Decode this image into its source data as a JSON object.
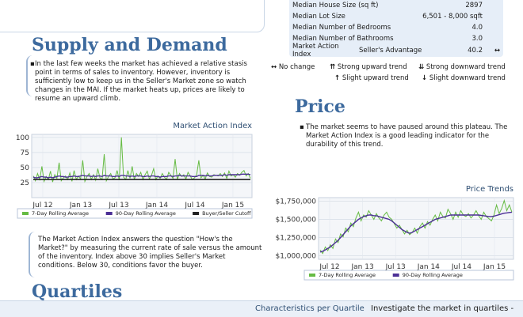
{
  "stats": {
    "rows": [
      {
        "label": "Median House Size (sq ft)",
        "value": "2897",
        "arrow": ""
      },
      {
        "label": "Median Lot Size",
        "value": "6,501 - 8,000 sqft",
        "arrow": ""
      },
      {
        "label": "Median Number of Bedrooms",
        "value": "4.0",
        "arrow": ""
      },
      {
        "label": "Median Number of Bathrooms",
        "value": "3.0",
        "arrow": ""
      }
    ],
    "mai": {
      "label": "Market Action Index",
      "sub": "Seller's Advantage",
      "value": "40.2",
      "arrow": "↔"
    }
  },
  "arrow_legend": {
    "no_change": {
      "icon": "↔",
      "text": "No change"
    },
    "strong_up": {
      "icon": "⇈",
      "text": "Strong upward trend"
    },
    "strong_down": {
      "icon": "⇊",
      "text": "Strong downward trend"
    },
    "slight_up": {
      "icon": "↑",
      "text": "Slight upward trend"
    },
    "slight_down": {
      "icon": "↓",
      "text": "Slight downward trend"
    }
  },
  "supply": {
    "title": "Supply and Demand",
    "body": "In the last few weeks the market has achieved a relative stasis point in terms of sales to inventory.  However, inventory is sufficiently low to keep us in the Seller's Market zone so watch changes in the MAI.  If the market heats up, prices are likely to resume an upward climb."
  },
  "price": {
    "title": "Price",
    "body": "The market seems to have paused around this plateau. The Market Action Index is a good leading indicator for the durability of this trend."
  },
  "mai_note": "The Market Action Index answers the question \"How's the Market?\" by measuring the current rate of sale versus the amount of the inventory.  Index above 30 implies Seller's Market conditions. Below 30, conditions favor the buyer.",
  "quartiles": {
    "title": "Quartiles",
    "characteristics": "Characteristics per Quartile",
    "investigate": "Investigate the market in quartiles -"
  },
  "chart_data": [
    {
      "type": "line",
      "title": "Market Action Index",
      "x_ticks": [
        "Jul 12",
        "Jan 13",
        "Jul 13",
        "Jan 14",
        "Jul 14",
        "Jan 15"
      ],
      "y_ticks": [
        "100",
        "75",
        "50",
        "25"
      ],
      "ylim": [
        0,
        105
      ],
      "series": [
        {
          "name": "7-Day Rolling Average",
          "color": "#66bb44",
          "values": [
            36,
            28,
            40,
            30,
            52,
            27,
            35,
            30,
            44,
            26,
            38,
            32,
            58,
            28,
            33,
            36,
            30,
            41,
            27,
            45,
            30,
            36,
            31,
            62,
            27,
            35,
            40,
            30,
            38,
            29,
            48,
            33,
            30,
            72,
            28,
            35,
            40,
            31,
            33,
            45,
            29,
            100,
            34,
            30,
            45,
            32,
            52,
            30,
            40,
            35,
            42,
            30,
            38,
            44,
            31,
            37,
            48,
            30,
            36,
            32,
            40,
            34,
            30,
            42,
            37,
            32,
            64,
            30,
            40,
            35,
            38,
            31,
            42,
            36,
            30,
            33,
            38,
            62,
            33,
            37,
            31,
            41,
            35,
            34,
            38,
            37,
            36,
            40,
            35,
            41,
            32,
            44,
            36,
            38,
            34,
            40,
            37,
            42,
            45,
            36,
            40,
            32
          ]
        },
        {
          "name": "90-Day Rolling Average",
          "color": "#4b2f96",
          "values": [
            34,
            33,
            33,
            34,
            35,
            34,
            34,
            33,
            34,
            33,
            34,
            35,
            36,
            35,
            35,
            34,
            34,
            35,
            35,
            36,
            35,
            35,
            36,
            37,
            36,
            36,
            36,
            35,
            36,
            35,
            36,
            36,
            35,
            37,
            36,
            36,
            36,
            35,
            35,
            36,
            35,
            37,
            37,
            36,
            36,
            35,
            36,
            35,
            36,
            36,
            36,
            35,
            35,
            36,
            35,
            36,
            36,
            35,
            35,
            34,
            35,
            35,
            35,
            36,
            36,
            35,
            36,
            36,
            37,
            36,
            36,
            36,
            36,
            36,
            35,
            35,
            35,
            37,
            37,
            37,
            36,
            37,
            36,
            36,
            37,
            37,
            37,
            37,
            37,
            38,
            37,
            38,
            38,
            38,
            38,
            38,
            38,
            39,
            39,
            39,
            39,
            38
          ]
        },
        {
          "name": "Buyer/Seller Cutoff",
          "color": "#222222",
          "values": [
            30,
            30
          ]
        }
      ]
    },
    {
      "type": "line",
      "title": "Price Trends",
      "x_ticks": [
        "Jul 12",
        "Jan 13",
        "Jul 13",
        "Jan 14",
        "Jul 14",
        "Jan 15"
      ],
      "y_ticks": [
        "$1,750,000",
        "$1,500,000",
        "$1,250,000",
        "$1,000,000"
      ],
      "ylim": [
        950000,
        1800000
      ],
      "series": [
        {
          "name": "7-Day Rolling Average",
          "color": "#66bb44",
          "values": [
            1080000,
            1030000,
            1120000,
            1070000,
            1150000,
            1100000,
            1230000,
            1180000,
            1300000,
            1260000,
            1380000,
            1330000,
            1450000,
            1400000,
            1520000,
            1600000,
            1480000,
            1560000,
            1530000,
            1620000,
            1560000,
            1500000,
            1580000,
            1520000,
            1480000,
            1560000,
            1600000,
            1530000,
            1500000,
            1440000,
            1380000,
            1420000,
            1360000,
            1300000,
            1350000,
            1290000,
            1320000,
            1380000,
            1310000,
            1400000,
            1450000,
            1380000,
            1470000,
            1420000,
            1500000,
            1560000,
            1480000,
            1600000,
            1540000,
            1520000,
            1640000,
            1580000,
            1500000,
            1600000,
            1530000,
            1620000,
            1560000,
            1540000,
            1580000,
            1520000,
            1560000,
            1620000,
            1550000,
            1500000,
            1600000,
            1540000,
            1510000,
            1480000,
            1560000,
            1700000,
            1580000,
            1650000,
            1760000,
            1620000,
            1700000,
            1600000
          ]
        },
        {
          "name": "90-Day Rolling Average",
          "color": "#4b2f96",
          "values": [
            1050000,
            1060000,
            1080000,
            1100000,
            1120000,
            1150000,
            1180000,
            1210000,
            1250000,
            1290000,
            1330000,
            1370000,
            1410000,
            1440000,
            1470000,
            1500000,
            1520000,
            1540000,
            1550000,
            1560000,
            1560000,
            1550000,
            1550000,
            1540000,
            1530000,
            1520000,
            1510000,
            1500000,
            1480000,
            1450000,
            1420000,
            1390000,
            1360000,
            1340000,
            1320000,
            1310000,
            1320000,
            1340000,
            1360000,
            1380000,
            1400000,
            1420000,
            1440000,
            1460000,
            1480000,
            1500000,
            1510000,
            1520000,
            1530000,
            1540000,
            1550000,
            1560000,
            1560000,
            1560000,
            1560000,
            1560000,
            1560000,
            1560000,
            1560000,
            1560000,
            1560000,
            1560000,
            1560000,
            1555000,
            1550000,
            1545000,
            1540000,
            1540000,
            1545000,
            1555000,
            1565000,
            1575000,
            1585000,
            1590000,
            1595000,
            1600000
          ]
        }
      ]
    }
  ]
}
